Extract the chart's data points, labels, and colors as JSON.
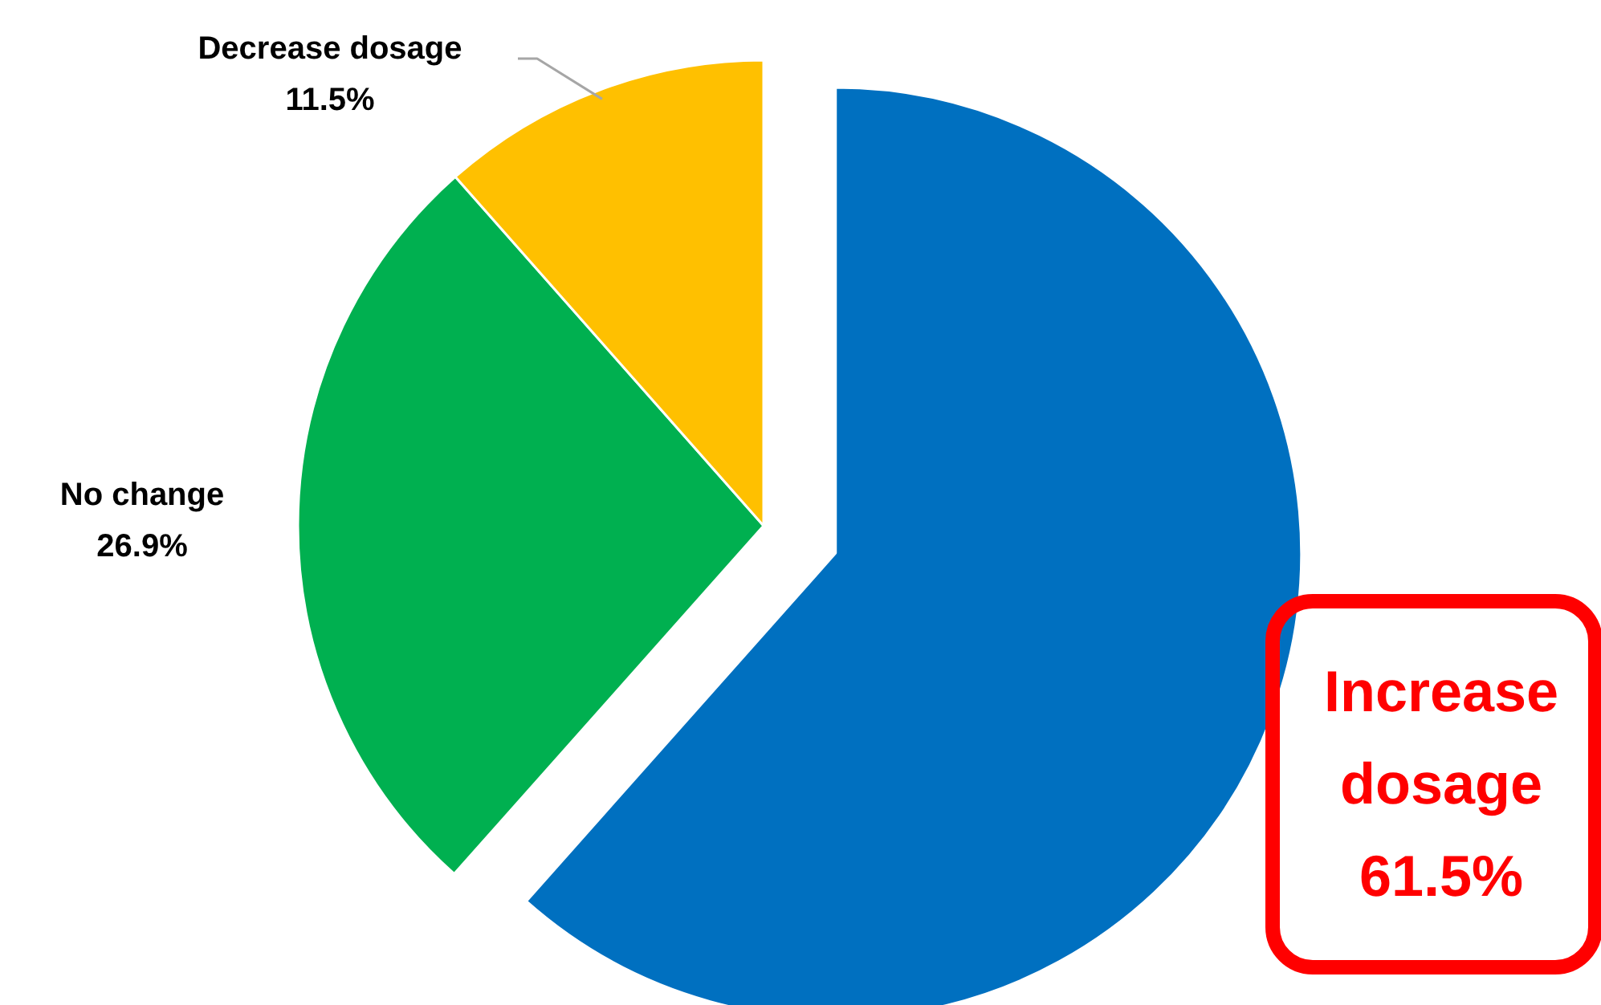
{
  "chart_data": {
    "type": "pie",
    "categories": [
      "Increase dosage",
      "No change",
      "Decrease dosage"
    ],
    "values": [
      61.5,
      26.9,
      11.5
    ],
    "value_labels": [
      "61.5%",
      "26.9%",
      "11.5%"
    ],
    "colors": [
      "#0070c0",
      "#00b050",
      "#ffc000"
    ]
  }
}
